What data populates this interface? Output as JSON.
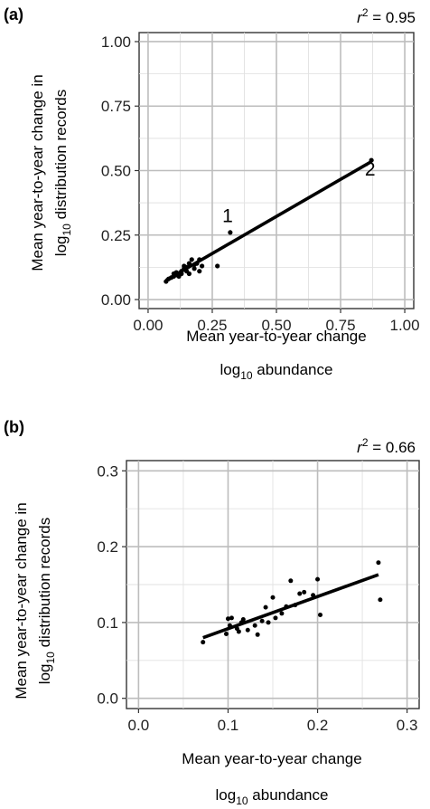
{
  "chart_data": [
    {
      "panel": "(a)",
      "type": "scatter",
      "stat_label": "r",
      "stat_exponent": "2",
      "stat_value": " = 0.95",
      "ylabel_line1": "Mean year-to-year change in",
      "ylabel_line2_prefix": "log",
      "ylabel_line2_sub": "10",
      "ylabel_line2_suffix": " distribution records",
      "xlabel_line1": "Mean year-to-year change",
      "xlabel_line2_prefix": "log",
      "xlabel_line2_sub": "10",
      "xlabel_line2_suffix": " abundance",
      "xlim": [
        0.0,
        1.0
      ],
      "ylim": [
        0.0,
        1.0
      ],
      "xlim_view": [
        -0.035,
        1.035
      ],
      "ylim_view": [
        -0.035,
        1.035
      ],
      "xticks": [
        0.0,
        0.25,
        0.5,
        0.75,
        1.0
      ],
      "xtick_labels": [
        "0.00",
        "0.25",
        "0.50",
        "0.75",
        "1.00"
      ],
      "yticks": [
        0.0,
        0.25,
        0.5,
        0.75,
        1.0
      ],
      "ytick_labels": [
        "0.00",
        "0.25",
        "0.50",
        "0.75",
        "1.00"
      ],
      "grid": true,
      "points": [
        [
          0.07,
          0.07
        ],
        [
          0.08,
          0.08
        ],
        [
          0.09,
          0.085
        ],
        [
          0.1,
          0.1
        ],
        [
          0.1,
          0.09
        ],
        [
          0.11,
          0.095
        ],
        [
          0.11,
          0.105
        ],
        [
          0.12,
          0.09
        ],
        [
          0.12,
          0.1
        ],
        [
          0.13,
          0.11
        ],
        [
          0.13,
          0.1
        ],
        [
          0.14,
          0.12
        ],
        [
          0.14,
          0.13
        ],
        [
          0.15,
          0.11
        ],
        [
          0.15,
          0.125
        ],
        [
          0.16,
          0.14
        ],
        [
          0.16,
          0.1
        ],
        [
          0.17,
          0.155
        ],
        [
          0.18,
          0.12
        ],
        [
          0.18,
          0.135
        ],
        [
          0.19,
          0.14
        ],
        [
          0.2,
          0.11
        ],
        [
          0.2,
          0.155
        ],
        [
          0.21,
          0.13
        ],
        [
          0.27,
          0.13
        ],
        [
          0.32,
          0.26
        ],
        [
          0.87,
          0.54
        ]
      ],
      "fit_line": [
        [
          0.07,
          0.075
        ],
        [
          0.87,
          0.535
        ]
      ],
      "annotations": [
        {
          "text": "1",
          "x": 0.31,
          "y": 0.3
        },
        {
          "text": "2",
          "x": 0.865,
          "y": 0.48
        }
      ]
    },
    {
      "panel": "(b)",
      "type": "scatter",
      "stat_label": "r",
      "stat_exponent": "2",
      "stat_value": " = 0.66",
      "ylabel_line1": "Mean year-to-year change in",
      "ylabel_line2_prefix": "log",
      "ylabel_line2_sub": "10",
      "ylabel_line2_suffix": " distribution records",
      "xlabel_line1": "Mean year-to-year change",
      "xlabel_line2_prefix": "log",
      "xlabel_line2_sub": "10",
      "xlabel_line2_suffix": " abundance",
      "xlim": [
        0.0,
        0.3
      ],
      "ylim": [
        0.0,
        0.3
      ],
      "xlim_view": [
        -0.0135,
        0.3135
      ],
      "ylim_view": [
        -0.0135,
        0.3135
      ],
      "xticks": [
        0.0,
        0.1,
        0.2,
        0.3
      ],
      "xtick_labels": [
        "0.0",
        "0.1",
        "0.2",
        "0.3"
      ],
      "yticks": [
        0.0,
        0.1,
        0.2,
        0.3
      ],
      "ytick_labels": [
        "0.0",
        "0.1",
        "0.2",
        "0.3"
      ],
      "grid": true,
      "points": [
        [
          0.072,
          0.074
        ],
        [
          0.098,
          0.085
        ],
        [
          0.1,
          0.105
        ],
        [
          0.102,
          0.096
        ],
        [
          0.104,
          0.106
        ],
        [
          0.11,
          0.092
        ],
        [
          0.112,
          0.088
        ],
        [
          0.115,
          0.1
        ],
        [
          0.117,
          0.104
        ],
        [
          0.122,
          0.09
        ],
        [
          0.13,
          0.096
        ],
        [
          0.133,
          0.084
        ],
        [
          0.138,
          0.102
        ],
        [
          0.142,
          0.12
        ],
        [
          0.145,
          0.1
        ],
        [
          0.15,
          0.133
        ],
        [
          0.153,
          0.106
        ],
        [
          0.16,
          0.112
        ],
        [
          0.165,
          0.121
        ],
        [
          0.17,
          0.155
        ],
        [
          0.175,
          0.123
        ],
        [
          0.18,
          0.138
        ],
        [
          0.185,
          0.14
        ],
        [
          0.195,
          0.136
        ],
        [
          0.2,
          0.157
        ],
        [
          0.203,
          0.11
        ],
        [
          0.268,
          0.179
        ],
        [
          0.27,
          0.13
        ]
      ],
      "fit_line": [
        [
          0.072,
          0.08
        ],
        [
          0.268,
          0.163
        ]
      ],
      "annotations": []
    }
  ]
}
